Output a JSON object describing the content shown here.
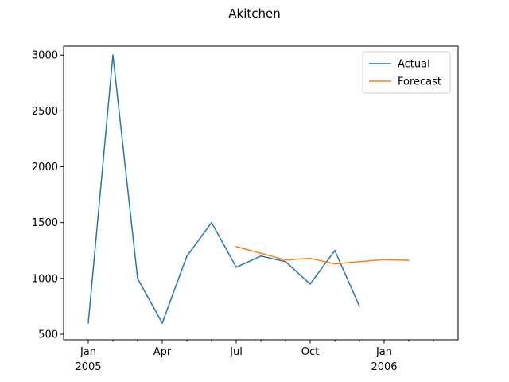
{
  "chart_data": {
    "type": "line",
    "title": "Akitchen",
    "xlabel": "",
    "ylabel": "",
    "x_axis": {
      "range": [
        "2004-12",
        "2006-04"
      ],
      "major_ticks": [
        {
          "date": "2005-01",
          "label": "Jan",
          "sublabel": "2005"
        },
        {
          "date": "2005-04",
          "label": "Apr",
          "sublabel": ""
        },
        {
          "date": "2005-07",
          "label": "Jul",
          "sublabel": ""
        },
        {
          "date": "2005-10",
          "label": "Oct",
          "sublabel": ""
        },
        {
          "date": "2006-01",
          "label": "Jan",
          "sublabel": "2006"
        }
      ],
      "minor_ticks": [
        "2005-02",
        "2005-03",
        "2005-05",
        "2005-06",
        "2005-08",
        "2005-09",
        "2005-11",
        "2005-12",
        "2006-02",
        "2006-03"
      ]
    },
    "ylim": [
      450,
      3080
    ],
    "y_ticks": [
      500,
      1000,
      1500,
      2000,
      2500,
      3000
    ],
    "grid": false,
    "legend_position": "top-right",
    "series": [
      {
        "name": "Actual",
        "color": "#1f77b4",
        "points": [
          {
            "x": "2005-01",
            "y": 600
          },
          {
            "x": "2005-02",
            "y": 3000
          },
          {
            "x": "2005-03",
            "y": 1000
          },
          {
            "x": "2005-04",
            "y": 600
          },
          {
            "x": "2005-05",
            "y": 1200
          },
          {
            "x": "2005-06",
            "y": 1500
          },
          {
            "x": "2005-07",
            "y": 1100
          },
          {
            "x": "2005-08",
            "y": 1200
          },
          {
            "x": "2005-09",
            "y": 1150
          },
          {
            "x": "2005-10",
            "y": 950
          },
          {
            "x": "2005-11",
            "y": 1250
          },
          {
            "x": "2005-12",
            "y": 750
          }
        ]
      },
      {
        "name": "Forecast",
        "color": "#ff7f0e",
        "points": [
          {
            "x": "2005-07",
            "y": 1285
          },
          {
            "x": "2005-08",
            "y": 1225
          },
          {
            "x": "2005-09",
            "y": 1165
          },
          {
            "x": "2005-10",
            "y": 1180
          },
          {
            "x": "2005-11",
            "y": 1130
          },
          {
            "x": "2005-12",
            "y": 1150
          },
          {
            "x": "2006-01",
            "y": 1168
          },
          {
            "x": "2006-02",
            "y": 1162
          }
        ]
      }
    ]
  }
}
